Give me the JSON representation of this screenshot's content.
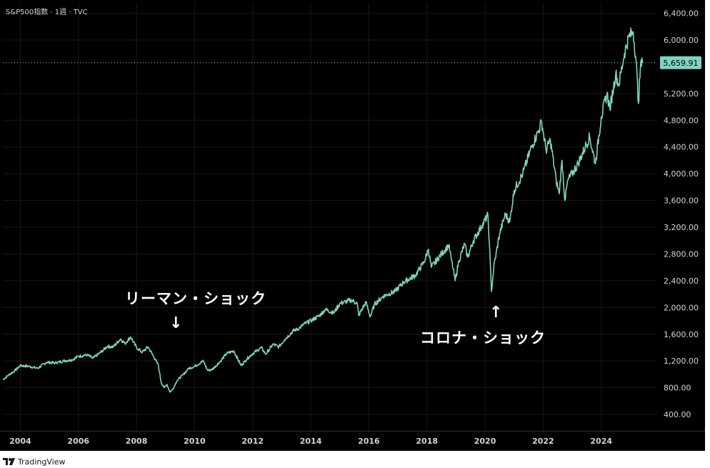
{
  "header": {
    "title": "S&P500指数 · 1週 · TVC"
  },
  "footer": {
    "brand": "TradingView"
  },
  "colors": {
    "background": "#000000",
    "line": "#7fd4c1",
    "axis_text": "#d1d4dc",
    "price_tag_text": "#000000"
  },
  "annotations": {
    "lehman": {
      "text": "リーマン・ショック",
      "arrow": "↓"
    },
    "corona": {
      "text": "コロナ・ショック",
      "arrow": "↑"
    }
  },
  "chart_data": {
    "type": "line",
    "title": "",
    "xlabel": "",
    "ylabel": "",
    "xlim": [
      2003.4,
      2025.9
    ],
    "ylim": [
      155,
      6555
    ],
    "x_ticks": [
      "2004",
      "2006",
      "2008",
      "2010",
      "2012",
      "2014",
      "2016",
      "2018",
      "2020",
      "2022",
      "2024"
    ],
    "y_ticks": [
      "400.00",
      "800.00",
      "1,200.00",
      "1,600.00",
      "2,000.00",
      "2,400.00",
      "2,800.00",
      "3,200.00",
      "3,600.00",
      "4,000.00",
      "4,400.00",
      "4,800.00",
      "5,200.00",
      "6,000.00",
      "6,400.00"
    ],
    "last_price": {
      "value": 5659.91,
      "label": "5,659.91"
    },
    "legend": "none",
    "grid": true,
    "series": [
      {
        "points": [
          [
            2003.4,
            920
          ],
          [
            2003.6,
            990
          ],
          [
            2003.8,
            1050
          ],
          [
            2004.0,
            1130
          ],
          [
            2004.3,
            1120
          ],
          [
            2004.6,
            1090
          ],
          [
            2004.9,
            1180
          ],
          [
            2005.2,
            1170
          ],
          [
            2005.5,
            1200
          ],
          [
            2005.8,
            1220
          ],
          [
            2006.0,
            1270
          ],
          [
            2006.3,
            1290
          ],
          [
            2006.5,
            1240
          ],
          [
            2006.8,
            1340
          ],
          [
            2007.0,
            1420
          ],
          [
            2007.2,
            1410
          ],
          [
            2007.45,
            1530
          ],
          [
            2007.6,
            1460
          ],
          [
            2007.8,
            1560
          ],
          [
            2008.0,
            1400
          ],
          [
            2008.2,
            1330
          ],
          [
            2008.4,
            1410
          ],
          [
            2008.6,
            1260
          ],
          [
            2008.75,
            1140
          ],
          [
            2008.85,
            880
          ],
          [
            2008.95,
            800
          ],
          [
            2009.05,
            850
          ],
          [
            2009.15,
            735
          ],
          [
            2009.25,
            780
          ],
          [
            2009.4,
            910
          ],
          [
            2009.6,
            990
          ],
          [
            2009.8,
            1090
          ],
          [
            2010.0,
            1120
          ],
          [
            2010.3,
            1200
          ],
          [
            2010.45,
            1060
          ],
          [
            2010.6,
            1070
          ],
          [
            2010.9,
            1200
          ],
          [
            2011.1,
            1310
          ],
          [
            2011.35,
            1350
          ],
          [
            2011.6,
            1130
          ],
          [
            2011.8,
            1230
          ],
          [
            2012.0,
            1310
          ],
          [
            2012.3,
            1400
          ],
          [
            2012.45,
            1300
          ],
          [
            2012.7,
            1450
          ],
          [
            2012.9,
            1410
          ],
          [
            2013.1,
            1520
          ],
          [
            2013.4,
            1650
          ],
          [
            2013.6,
            1690
          ],
          [
            2013.8,
            1760
          ],
          [
            2014.0,
            1800
          ],
          [
            2014.3,
            1880
          ],
          [
            2014.5,
            1970
          ],
          [
            2014.8,
            1920
          ],
          [
            2015.0,
            2060
          ],
          [
            2015.4,
            2110
          ],
          [
            2015.6,
            2060
          ],
          [
            2015.65,
            1880
          ],
          [
            2015.9,
            2080
          ],
          [
            2016.05,
            1860
          ],
          [
            2016.2,
            2050
          ],
          [
            2016.5,
            2170
          ],
          [
            2016.9,
            2240
          ],
          [
            2017.2,
            2380
          ],
          [
            2017.6,
            2480
          ],
          [
            2017.9,
            2680
          ],
          [
            2018.05,
            2870
          ],
          [
            2018.15,
            2600
          ],
          [
            2018.5,
            2800
          ],
          [
            2018.75,
            2930
          ],
          [
            2018.85,
            2700
          ],
          [
            2018.97,
            2400
          ],
          [
            2019.1,
            2700
          ],
          [
            2019.3,
            2950
          ],
          [
            2019.4,
            2750
          ],
          [
            2019.6,
            3000
          ],
          [
            2019.9,
            3230
          ],
          [
            2020.1,
            3380
          ],
          [
            2020.15,
            2950
          ],
          [
            2020.22,
            2240
          ],
          [
            2020.3,
            2600
          ],
          [
            2020.5,
            3100
          ],
          [
            2020.7,
            3400
          ],
          [
            2020.85,
            3280
          ],
          [
            2021.0,
            3750
          ],
          [
            2021.3,
            4000
          ],
          [
            2021.6,
            4400
          ],
          [
            2021.85,
            4650
          ],
          [
            2021.95,
            4780
          ],
          [
            2022.1,
            4350
          ],
          [
            2022.25,
            4500
          ],
          [
            2022.45,
            3900
          ],
          [
            2022.55,
            3700
          ],
          [
            2022.65,
            4200
          ],
          [
            2022.75,
            3600
          ],
          [
            2022.85,
            3900
          ],
          [
            2023.0,
            4000
          ],
          [
            2023.2,
            4150
          ],
          [
            2023.45,
            4400
          ],
          [
            2023.6,
            4550
          ],
          [
            2023.8,
            4150
          ],
          [
            2024.0,
            4850
          ],
          [
            2024.2,
            5200
          ],
          [
            2024.3,
            4970
          ],
          [
            2024.5,
            5500
          ],
          [
            2024.6,
            5320
          ],
          [
            2024.8,
            5800
          ],
          [
            2024.95,
            6050
          ],
          [
            2025.1,
            6120
          ],
          [
            2025.2,
            5700
          ],
          [
            2025.28,
            5050
          ],
          [
            2025.35,
            5600
          ],
          [
            2025.42,
            5659.91
          ]
        ]
      }
    ]
  }
}
